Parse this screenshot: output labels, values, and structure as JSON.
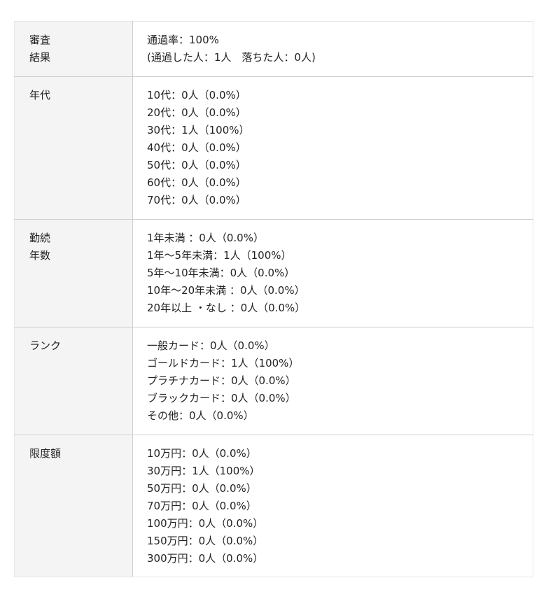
{
  "rows": [
    {
      "label": [
        "審査",
        "結果"
      ],
      "values": [
        "通過率：100%",
        "(通過した人：1人　落ちた人：0人)"
      ]
    },
    {
      "label": [
        "年代"
      ],
      "values": [
        "10代：0人（0.0%）",
        "20代：0人（0.0%）",
        "30代：1人（100%）",
        "40代：0人（0.0%）",
        "50代：0人（0.0%）",
        "60代：0人（0.0%）",
        "70代：0人（0.0%）"
      ]
    },
    {
      "label": [
        "勤続",
        "年数"
      ],
      "values": [
        "1年未満 ：0人（0.0%）",
        "1年〜5年未満：1人（100%）",
        "5年〜10年未満：0人（0.0%）",
        "10年〜20年未満 ：0人（0.0%）",
        "20年以上 ・なし ：0人（0.0%）"
      ]
    },
    {
      "label": [
        "ランク"
      ],
      "values": [
        "一般カード：0人（0.0%）",
        "ゴールドカード：1人（100%）",
        "プラチナカード：0人（0.0%）",
        "ブラックカード：0人（0.0%）",
        "その他：0人（0.0%）"
      ]
    },
    {
      "label": [
        "限度額"
      ],
      "values": [
        "10万円：0人（0.0%）",
        "30万円：1人（100%）",
        "50万円：0人（0.0%）",
        "70万円：0人（0.0%）",
        "100万円：0人（0.0%）",
        "150万円：0人（0.0%）",
        "300万円：0人（0.0%）"
      ]
    }
  ]
}
